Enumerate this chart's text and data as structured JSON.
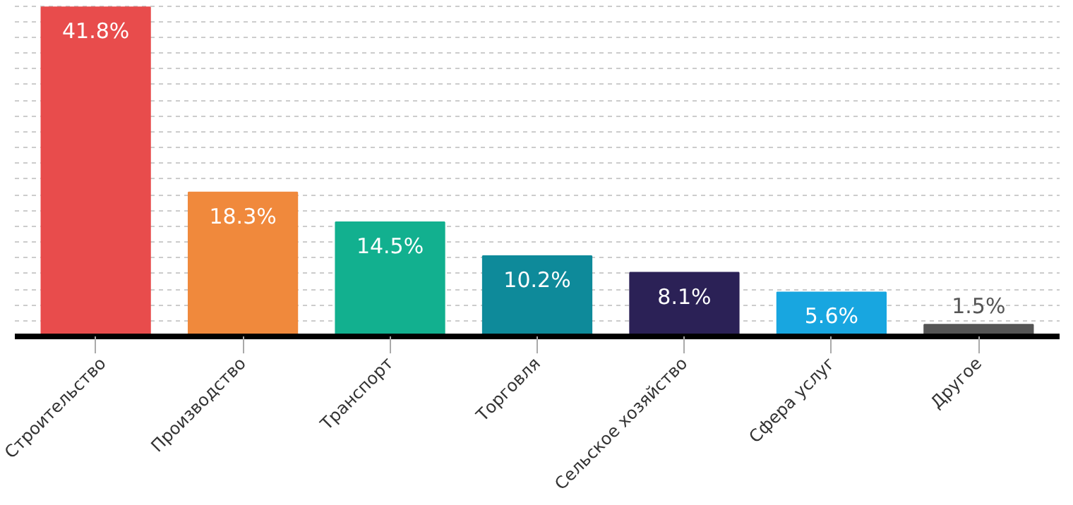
{
  "chart_data": {
    "type": "bar",
    "categories": [
      "Строительство",
      "Производство",
      "Транспорт",
      "Торговля",
      "Сельское хозяйство",
      "Сфера услуг",
      "Другое"
    ],
    "values": [
      41.8,
      18.3,
      14.5,
      10.2,
      8.1,
      5.6,
      1.5
    ],
    "colors": [
      "#e84c4c",
      "#f0893c",
      "#12b08f",
      "#0e8a9a",
      "#2b2156",
      "#18a6e0",
      "#555555"
    ],
    "value_labels": [
      "41.8%",
      "18.3%",
      "14.5%",
      "10.2%",
      "8.1%",
      "5.6%",
      "1.5%"
    ],
    "grid": "y",
    "tick_labels": "x"
  }
}
